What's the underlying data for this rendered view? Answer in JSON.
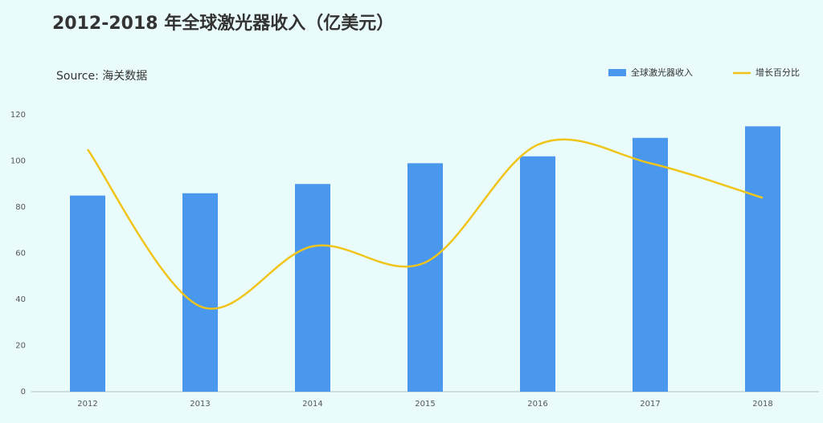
{
  "chart_data": {
    "type": "bar",
    "title": "2012-2018 年全球激光器收入（亿美元）",
    "subtitle": "Source: 海关数据",
    "categories": [
      "2012",
      "2013",
      "2014",
      "2015",
      "2016",
      "2017",
      "2018"
    ],
    "series": [
      {
        "name": "全球激光器收入",
        "type": "bar",
        "color": "#4a98ee",
        "values": [
          85,
          86,
          90,
          99,
          102,
          110,
          115
        ]
      },
      {
        "name": "增长百分比",
        "type": "line",
        "color": "#f0c419",
        "values": [
          105,
          37,
          63,
          56,
          107,
          99,
          84
        ]
      }
    ],
    "ylim": [
      0,
      120
    ],
    "yticks": [
      0,
      20,
      40,
      60,
      80,
      100,
      120
    ],
    "grid": false,
    "legend": "top-right"
  }
}
